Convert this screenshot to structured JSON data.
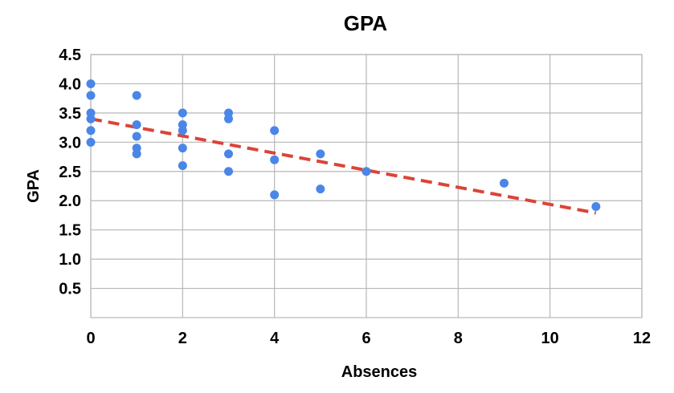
{
  "chart_data": {
    "type": "scatter",
    "title": "GPA",
    "xlabel": "Absences",
    "ylabel": "GPA",
    "xlim": [
      0,
      12
    ],
    "ylim": [
      0,
      4.5
    ],
    "x_ticks": [
      "0",
      "2",
      "4",
      "6",
      "8",
      "10",
      "12"
    ],
    "y_ticks": [
      "0.5",
      "1.0",
      "1.5",
      "2.0",
      "2.5",
      "3.0",
      "3.5",
      "4.0",
      "4.5"
    ],
    "grid": true,
    "colors": {
      "points": "#4a86e8",
      "trendline": "#db4437"
    },
    "series": [
      {
        "points": [
          [
            0,
            4.0
          ],
          [
            0,
            3.8
          ],
          [
            0,
            3.5
          ],
          [
            0,
            3.4
          ],
          [
            0,
            3.2
          ],
          [
            0,
            3.0
          ],
          [
            1,
            3.8
          ],
          [
            1,
            3.3
          ],
          [
            1,
            3.1
          ],
          [
            1,
            2.9
          ],
          [
            1,
            2.8
          ],
          [
            2,
            3.5
          ],
          [
            2,
            3.3
          ],
          [
            2,
            3.2
          ],
          [
            2,
            2.9
          ],
          [
            2,
            2.6
          ],
          [
            3,
            3.5
          ],
          [
            3,
            3.4
          ],
          [
            3,
            2.8
          ],
          [
            3,
            2.5
          ],
          [
            4,
            3.2
          ],
          [
            4,
            2.7
          ],
          [
            4,
            2.1
          ],
          [
            5,
            2.8
          ],
          [
            5,
            2.2
          ],
          [
            6,
            2.5
          ],
          [
            9,
            2.3
          ],
          [
            11,
            1.9
          ]
        ]
      }
    ],
    "trendline": {
      "style": "dashed",
      "from": [
        0,
        3.4
      ],
      "to": [
        11,
        1.79
      ]
    }
  }
}
